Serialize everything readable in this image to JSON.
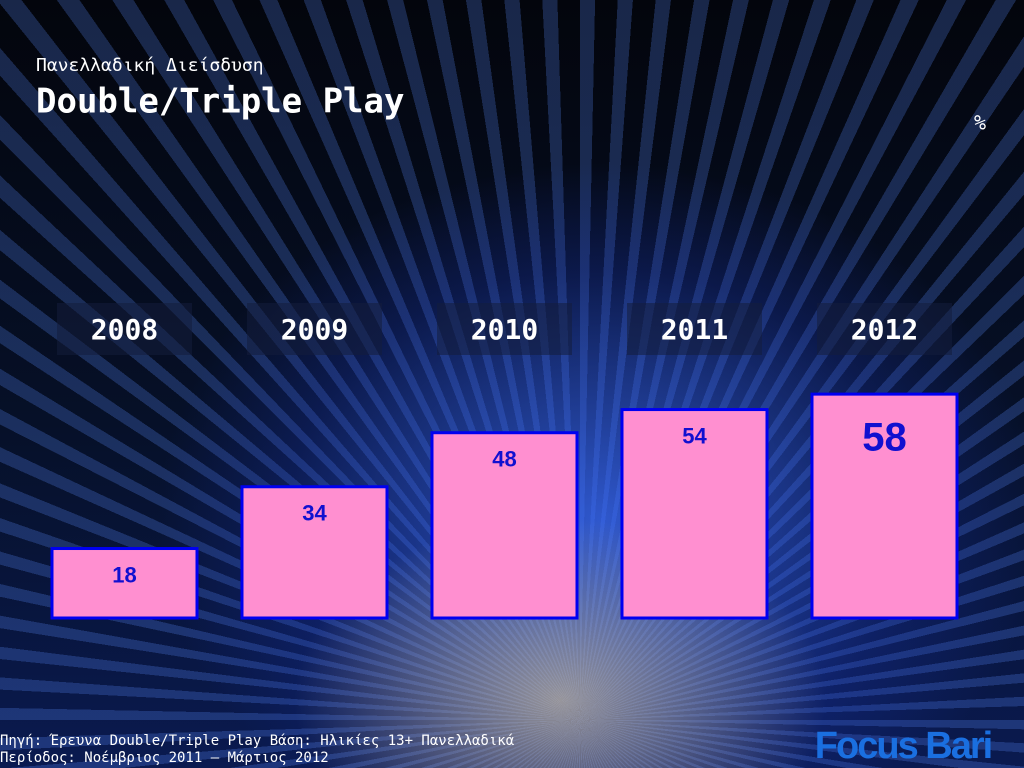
{
  "chart_data": {
    "type": "bar",
    "subtitle": "Πανελλαδική Διείσδυση",
    "title": "Double/Triple Play",
    "unit": "%",
    "categories": [
      "2008",
      "2009",
      "2010",
      "2011",
      "2012"
    ],
    "values": [
      18,
      34,
      48,
      54,
      58
    ],
    "color": "#ff8fd0",
    "edge_color": "#0000f0",
    "label_color": "#1010d0",
    "source": [
      "Πηγή: Έρευνα Double/Triple Play Βάση: Ηλικίες 13+ Πανελλαδικά",
      "Περίοδος: Νοέμβριος 2011 – Μάρτιος 2012"
    ]
  },
  "logo": "Focus Bari"
}
